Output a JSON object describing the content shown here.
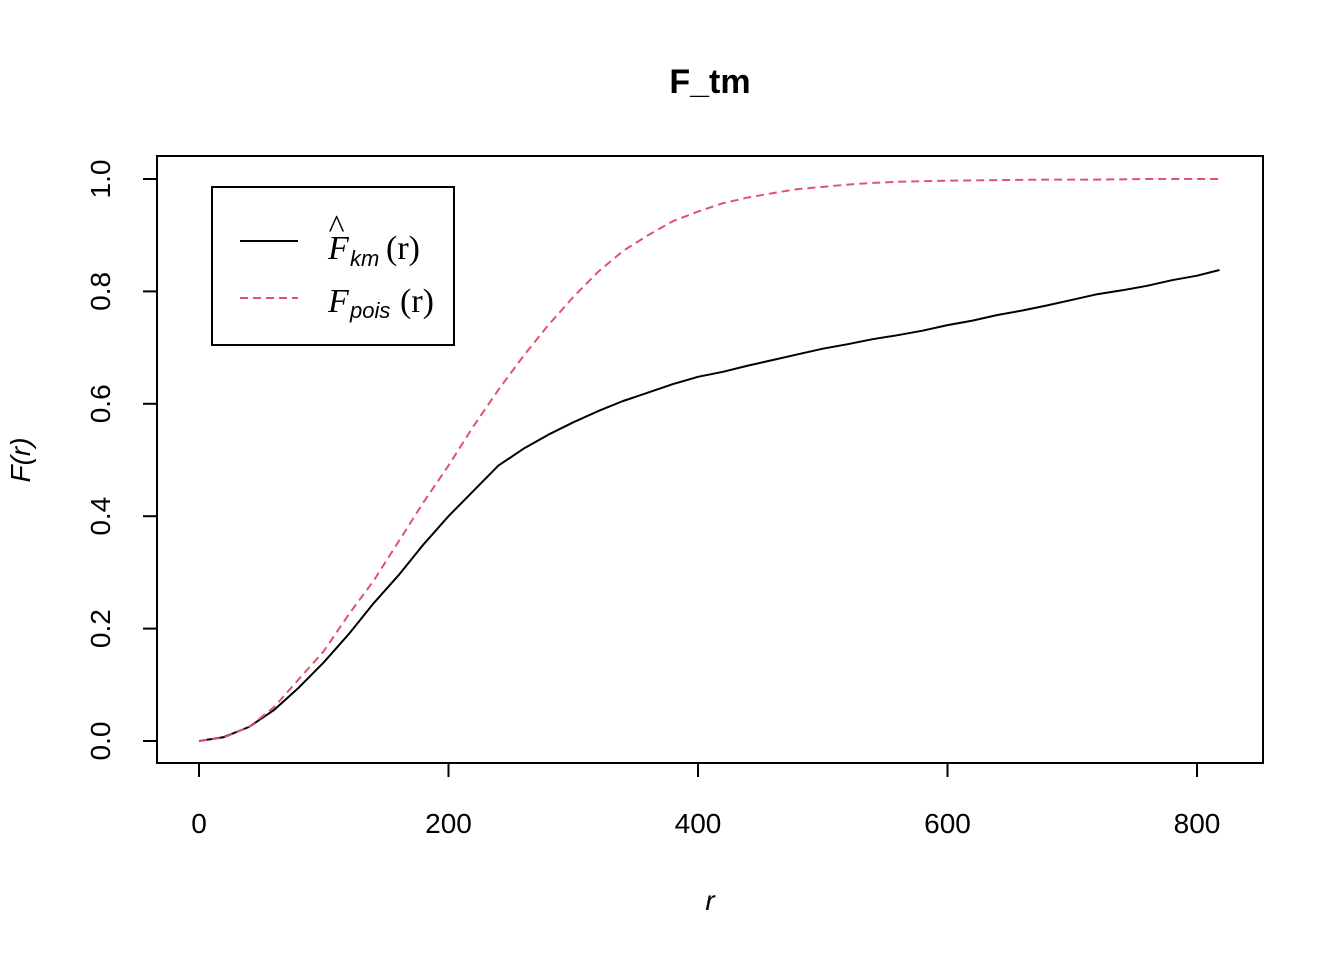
{
  "chart_data": {
    "type": "line",
    "title": "F_tm",
    "xlabel": "r",
    "ylabel": "F(r)",
    "xlim": [
      0,
      820
    ],
    "ylim": [
      0,
      1
    ],
    "xticks": [
      0,
      200,
      400,
      600,
      800
    ],
    "yticks": [
      0.0,
      0.2,
      0.4,
      0.6,
      0.8,
      1.0
    ],
    "ytick_labels": [
      "0.0",
      "0.2",
      "0.4",
      "0.6",
      "0.8",
      "1.0"
    ],
    "xtick_labels": [
      "0",
      "200",
      "400",
      "600",
      "800"
    ],
    "legend_position": "top-left",
    "series": [
      {
        "name": "F̂_km(r)",
        "legend_main": "F",
        "legend_hat": "^",
        "legend_sub": "km",
        "legend_arg": "(r)",
        "color": "#000000",
        "dash": "solid",
        "x": [
          0,
          20,
          40,
          60,
          80,
          100,
          120,
          140,
          160,
          180,
          200,
          220,
          240,
          260,
          280,
          300,
          320,
          340,
          360,
          380,
          400,
          420,
          440,
          460,
          480,
          500,
          520,
          540,
          560,
          580,
          600,
          620,
          640,
          660,
          680,
          700,
          720,
          740,
          760,
          780,
          800,
          818
        ],
        "y": [
          0,
          0.007,
          0.025,
          0.055,
          0.095,
          0.14,
          0.19,
          0.245,
          0.295,
          0.35,
          0.4,
          0.445,
          0.49,
          0.52,
          0.545,
          0.567,
          0.587,
          0.605,
          0.62,
          0.635,
          0.648,
          0.657,
          0.668,
          0.678,
          0.688,
          0.698,
          0.706,
          0.715,
          0.722,
          0.73,
          0.74,
          0.748,
          0.758,
          0.766,
          0.775,
          0.785,
          0.795,
          0.802,
          0.81,
          0.82,
          0.828,
          0.838
        ]
      },
      {
        "name": "F_pois(r)",
        "legend_main": "F",
        "legend_sub": "pois",
        "legend_arg": "(r)",
        "color": "#DF536B",
        "dash": "dashed",
        "x": [
          0,
          20,
          40,
          60,
          80,
          100,
          120,
          140,
          160,
          180,
          200,
          220,
          240,
          260,
          280,
          300,
          320,
          340,
          360,
          380,
          400,
          420,
          440,
          460,
          480,
          500,
          520,
          540,
          560,
          580,
          600,
          640,
          680,
          720,
          760,
          800,
          818
        ],
        "y": [
          0,
          0.006,
          0.025,
          0.06,
          0.11,
          0.16,
          0.225,
          0.285,
          0.355,
          0.425,
          0.49,
          0.56,
          0.625,
          0.685,
          0.74,
          0.79,
          0.835,
          0.872,
          0.9,
          0.925,
          0.942,
          0.957,
          0.967,
          0.975,
          0.982,
          0.986,
          0.99,
          0.993,
          0.995,
          0.996,
          0.997,
          0.998,
          0.999,
          0.999,
          1.0,
          1.0,
          1.0
        ]
      }
    ]
  }
}
